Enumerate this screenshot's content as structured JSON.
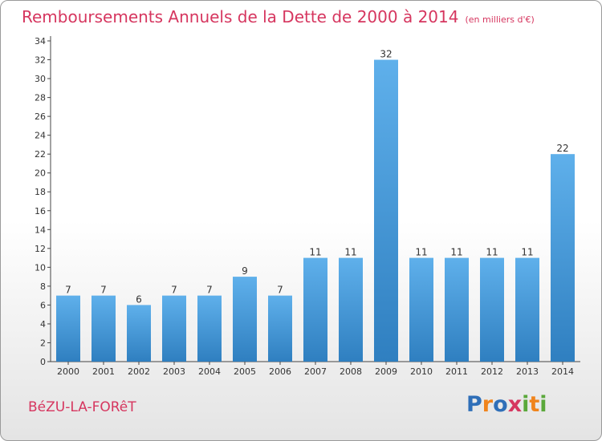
{
  "title": "Remboursements Annuels de la Dette de 2000 à 2014",
  "subtitle": "(en milliers d'€)",
  "town": "BéZU-LA-FORêT",
  "logo": {
    "text": "Proxiti",
    "letters": [
      {
        "ch": "P",
        "color": "#2f6fb8"
      },
      {
        "ch": "r",
        "color": "#f0841c"
      },
      {
        "ch": "o",
        "color": "#2f6fb8"
      },
      {
        "ch": "x",
        "color": "#d6365f"
      },
      {
        "ch": "i",
        "color": "#5aa83a"
      },
      {
        "ch": "t",
        "color": "#f0841c"
      },
      {
        "ch": "i",
        "color": "#5aa83a"
      }
    ]
  },
  "colors": {
    "accent": "#d6365f",
    "bar_top": "#5fb0eb",
    "bar_bottom": "#2f7fc0"
  },
  "chart_data": {
    "type": "bar",
    "categories": [
      "2000",
      "2001",
      "2002",
      "2003",
      "2004",
      "2005",
      "2006",
      "2007",
      "2008",
      "2009",
      "2010",
      "2011",
      "2012",
      "2013",
      "2014"
    ],
    "values": [
      7,
      7,
      6,
      7,
      7,
      9,
      7,
      11,
      11,
      32,
      11,
      11,
      11,
      11,
      22
    ],
    "ylim": [
      0,
      34
    ],
    "yticks": [
      0,
      2,
      4,
      6,
      8,
      10,
      12,
      14,
      16,
      18,
      20,
      22,
      24,
      26,
      28,
      30,
      32,
      34
    ],
    "grid": false,
    "show_value_labels": true
  }
}
